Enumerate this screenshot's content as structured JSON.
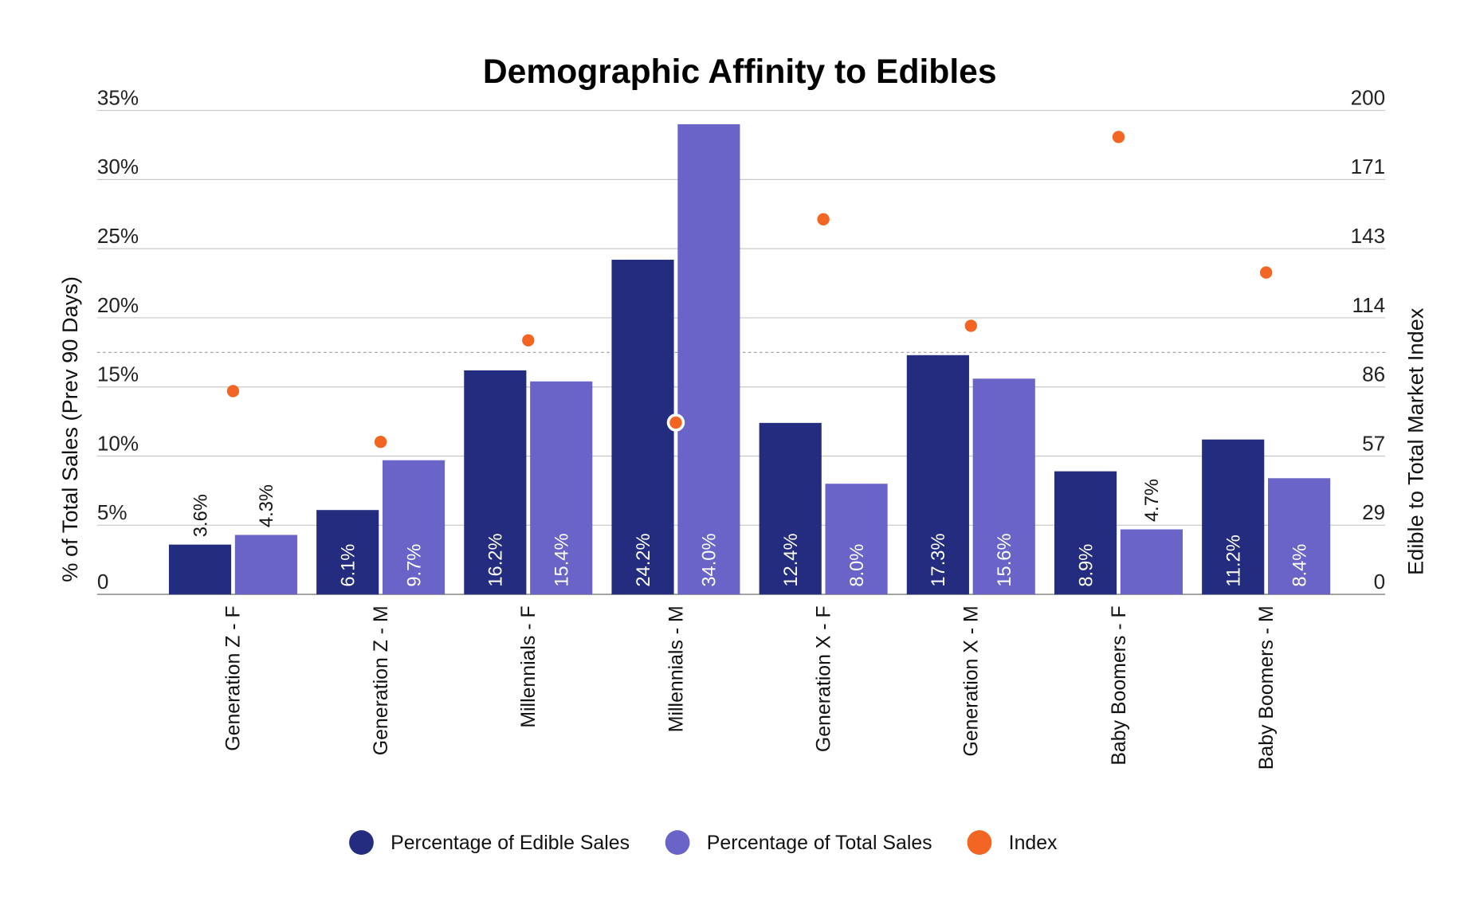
{
  "chart_data": {
    "type": "bar",
    "title": "Demographic Affinity to Edibles",
    "categories": [
      "Generation Z - F",
      "Generation Z - M",
      "Millennials - F",
      "Millennials - M",
      "Generation X - F",
      "Generation X - M",
      "Baby Boomers - F",
      "Baby Boomers - M"
    ],
    "series": [
      {
        "name": "Percentage of Edible Sales",
        "type": "bar",
        "axis": "left",
        "color": "#232c7e",
        "values": [
          3.6,
          6.1,
          16.2,
          24.2,
          12.4,
          17.3,
          8.9,
          11.2
        ],
        "labels": [
          "3.6%",
          "6.1%",
          "16.2%",
          "24.2%",
          "12.4%",
          "17.3%",
          "8.9%",
          "11.2%"
        ]
      },
      {
        "name": "Percentage of Total Sales",
        "type": "bar",
        "axis": "left",
        "color": "#6a63c8",
        "values": [
          4.3,
          9.7,
          15.4,
          34.0,
          8.0,
          15.6,
          4.7,
          8.4
        ],
        "labels": [
          "4.3%",
          "9.7%",
          "15.4%",
          "34.0%",
          "8.0%",
          "15.6%",
          "4.7%",
          "8.4%"
        ]
      },
      {
        "name": "Index",
        "type": "scatter",
        "axis": "right",
        "color": "#f26522",
        "values": [
          84,
          63,
          105,
          71,
          155,
          111,
          189,
          133
        ],
        "highlighted_index": 3
      }
    ],
    "ylabel": "% of Total Sales (Prev 90 Days)",
    "ylabel_right": "Edible to Total Market Index",
    "ylim": [
      0,
      35
    ],
    "ylim_right": [
      0,
      200
    ],
    "yticks": [
      "0",
      "5%",
      "10%",
      "15%",
      "20%",
      "25%",
      "30%",
      "35%"
    ],
    "yticks_right": [
      "0",
      "29",
      "57",
      "86",
      "114",
      "143",
      "171",
      "200"
    ],
    "reference_line_right": 100,
    "grid": true,
    "legend_position": "bottom"
  }
}
